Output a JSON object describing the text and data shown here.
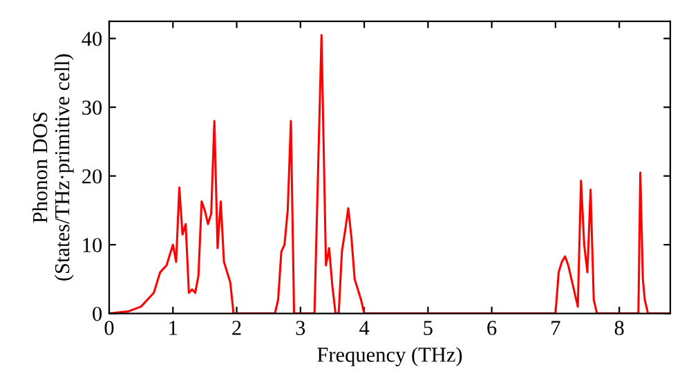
{
  "chart_data": {
    "type": "line",
    "xlabel": "Frequency (THz)",
    "ylabel": "Phonon DOS\n(States/THz·primitive cell)",
    "x": [
      0,
      0.3,
      0.5,
      0.7,
      0.8,
      0.9,
      1.0,
      1.05,
      1.1,
      1.15,
      1.2,
      1.25,
      1.3,
      1.35,
      1.4,
      1.45,
      1.5,
      1.55,
      1.6,
      1.65,
      1.7,
      1.75,
      1.8,
      1.85,
      1.9,
      1.95,
      2.6,
      2.65,
      2.7,
      2.75,
      2.8,
      2.85,
      2.9,
      3.22,
      3.33,
      3.4,
      3.45,
      3.5,
      3.55,
      3.6,
      3.65,
      3.7,
      3.75,
      3.8,
      3.85,
      3.95,
      4.0,
      7.0,
      7.05,
      7.1,
      7.15,
      7.2,
      7.3,
      7.35,
      7.4,
      7.45,
      7.5,
      7.55,
      7.6,
      7.65,
      8.3,
      8.33,
      8.37,
      8.4,
      8.45,
      8.8
    ],
    "series": [
      {
        "color": "#ff0000",
        "values": [
          0,
          0.3,
          1,
          3,
          6,
          7,
          10,
          7.5,
          18.3,
          11.5,
          13,
          3,
          3.5,
          3,
          5.5,
          16.3,
          15,
          13,
          14.5,
          28,
          9.5,
          16.3,
          7.5,
          6,
          4.5,
          0,
          0,
          2,
          9,
          10,
          15,
          28,
          0,
          0,
          40.5,
          7,
          9.5,
          4,
          0,
          0,
          9,
          12,
          15.3,
          11,
          5,
          2,
          0,
          0,
          6,
          7.5,
          8.3,
          7,
          3,
          1,
          19.3,
          10,
          6,
          18,
          2,
          0,
          0,
          20.5,
          5,
          2,
          0,
          0
        ]
      }
    ],
    "xlim": [
      0,
      8.8
    ],
    "ylim": [
      0,
      42.5
    ],
    "xticks": [
      0,
      1,
      2,
      3,
      4,
      5,
      6,
      7,
      8
    ],
    "yticks": [
      0,
      10,
      20,
      30,
      40
    ],
    "grid": false,
    "legend": false
  }
}
